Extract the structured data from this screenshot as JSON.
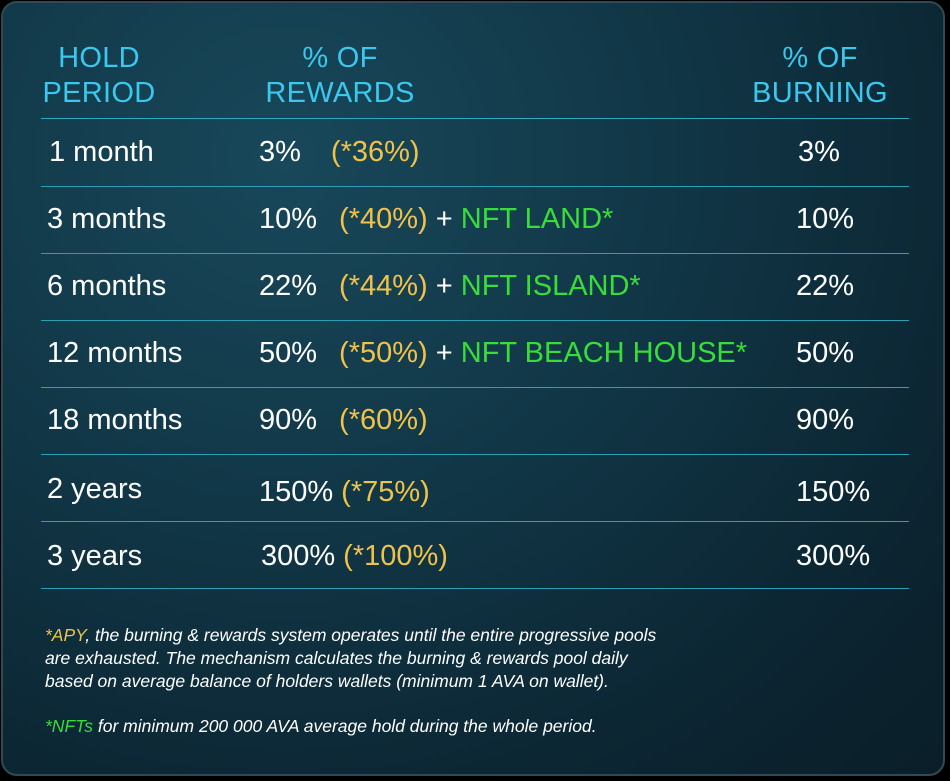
{
  "headers": {
    "hold_period": [
      "HOLD",
      "PERIOD"
    ],
    "rewards": [
      "% OF",
      "REWARDS"
    ],
    "burning": [
      "% OF",
      "BURNING"
    ]
  },
  "rows": [
    {
      "period": "1 month",
      "reward": "3%",
      "apy": "(*36%)",
      "nft": "",
      "burning": "3%"
    },
    {
      "period": "3 months",
      "reward": "10%",
      "apy": "(*40%)",
      "nft": "NFT LAND*",
      "burning": "10%"
    },
    {
      "period": "6 months",
      "reward": "22%",
      "apy": "(*44%)",
      "nft": "NFT ISLAND*",
      "burning": "22%"
    },
    {
      "period": "12 months",
      "reward": "50%",
      "apy": "(*50%)",
      "nft": "NFT BEACH HOUSE*",
      "burning": "50%"
    },
    {
      "period": "18 months",
      "reward": "90%",
      "apy": "(*60%)",
      "nft": "",
      "burning": "90%"
    },
    {
      "period": "2 years",
      "reward": "150%",
      "apy": "(*75%)",
      "nft": "",
      "burning": "150%"
    },
    {
      "period": "3 years",
      "reward": "300%",
      "apy": "(*100%)",
      "nft": "",
      "burning": "300%"
    }
  ],
  "plus_sign": "+",
  "footnotes": {
    "apy_label": "*APY",
    "apy_line1": ", the burning & rewards system operates until the entire progressive pools",
    "apy_line2": "are exhausted. The mechanism calculates the burning & rewards pool daily",
    "apy_line3": "based on average balance of holders wallets (minimum 1 AVA on wallet).",
    "nft_label": "*NFTs",
    "nft_text": " for minimum 200 000 AVA average hold during the whole period."
  },
  "colors": {
    "header": "#3bc8ee",
    "apy": "#f0c24a",
    "nft": "#38dd3a",
    "divider": "#2aa0b6"
  }
}
